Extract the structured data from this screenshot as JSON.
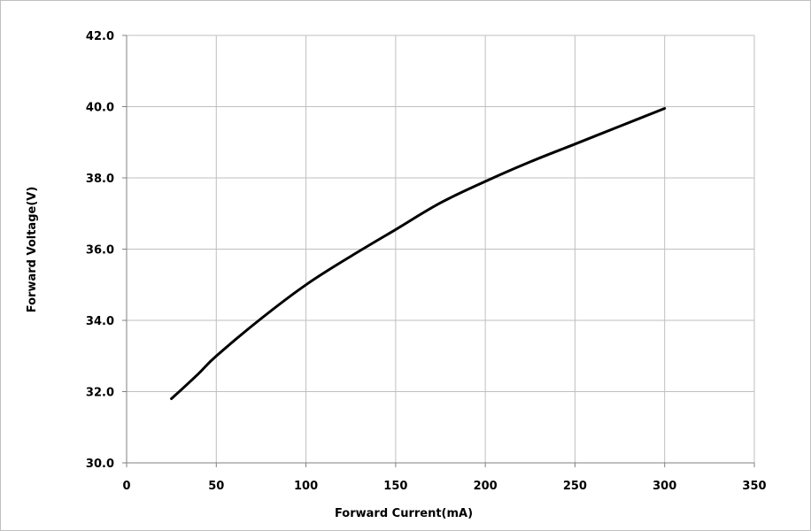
{
  "chart_data": {
    "type": "line",
    "title": "",
    "xlabel": "Forward Current(mA)",
    "ylabel": "Forward Voltage(V)",
    "xlim": [
      0,
      350
    ],
    "ylim": [
      30.0,
      42.0
    ],
    "x_ticks": [
      "0",
      "50",
      "100",
      "150",
      "200",
      "250",
      "300",
      "350"
    ],
    "y_ticks": [
      "30.0",
      "32.0",
      "34.0",
      "36.0",
      "38.0",
      "40.0",
      "42.0"
    ],
    "grid": true,
    "legend": "none",
    "series": [
      {
        "color": "#000000",
        "points": [
          [
            25,
            31.8
          ],
          [
            40,
            32.5
          ],
          [
            50,
            33.0
          ],
          [
            75,
            34.05
          ],
          [
            100,
            35.0
          ],
          [
            125,
            35.8
          ],
          [
            150,
            36.55
          ],
          [
            175,
            37.3
          ],
          [
            200,
            37.9
          ],
          [
            225,
            38.45
          ],
          [
            250,
            38.95
          ],
          [
            275,
            39.45
          ],
          [
            300,
            39.95
          ]
        ]
      }
    ]
  }
}
